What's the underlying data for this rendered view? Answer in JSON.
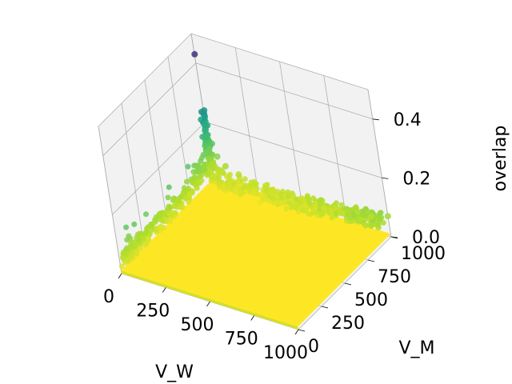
{
  "chart_data": {
    "type": "scatter3d",
    "title": "",
    "xlabel": "V_W",
    "ylabel": "V_M",
    "zlabel": "overlap",
    "xlim": [
      0,
      1000
    ],
    "ylim": [
      0,
      1000
    ],
    "zlim": [
      0,
      0.5
    ],
    "xticks": [
      "0",
      "250",
      "500",
      "750",
      "1000"
    ],
    "xtick_values": [
      0,
      250,
      500,
      750,
      1000
    ],
    "yticks": [
      "0",
      "250",
      "500",
      "750",
      "1000"
    ],
    "ytick_values": [
      0,
      250,
      500,
      750,
      1000
    ],
    "zticks": [
      "0.0",
      "0.2",
      "0.4"
    ],
    "ztick_values": [
      0,
      0.2,
      0.4
    ],
    "colormap": "viridis",
    "grid": true,
    "pane_color": "#f2f2f2",
    "surface_color": "#fde725",
    "notable_points": [
      {
        "V_W": 1,
        "V_M": 1000,
        "overlap": 0.43
      },
      {
        "V_W": 5,
        "V_M": 1000,
        "overlap": 0.24
      },
      {
        "V_W": 10,
        "V_M": 1000,
        "overlap": 0.19
      },
      {
        "V_W": 20,
        "V_M": 1000,
        "overlap": 0.13
      },
      {
        "V_W": 40,
        "V_M": 1000,
        "overlap": 0.09
      },
      {
        "V_W": 80,
        "V_M": 1000,
        "overlap": 0.065
      },
      {
        "V_W": 150,
        "V_M": 1000,
        "overlap": 0.05
      },
      {
        "V_W": 300,
        "V_M": 1000,
        "overlap": 0.04
      },
      {
        "V_W": 500,
        "V_M": 1000,
        "overlap": 0.035
      },
      {
        "V_W": 700,
        "V_M": 1000,
        "overlap": 0.04
      },
      {
        "V_W": 900,
        "V_M": 1000,
        "overlap": 0.05
      },
      {
        "V_W": 1000,
        "V_M": 1000,
        "overlap": 0.07
      }
    ]
  }
}
